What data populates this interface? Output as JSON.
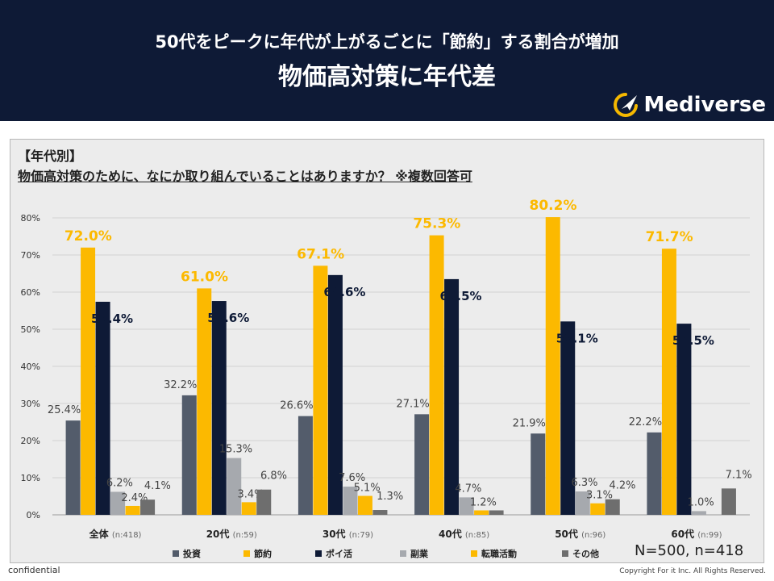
{
  "header": {
    "title_line1": "50代をピークに年代が上がるごとに「節約」する割合が増加",
    "title_line2": "物価高対策に年代差",
    "brand": "Mediverse"
  },
  "question": {
    "tag": "【年代別】",
    "text": "物価高対策のために、なにか取り組んでいることはありますか？ ※複数回答可"
  },
  "footer": {
    "sample_note": "N=500, n=418",
    "confidential": "confidential",
    "copyright": "Copyright For it Inc. All Rights Reserved."
  },
  "colors": {
    "header_bg": "#0e1a36",
    "brand_accent": "#f5b800"
  },
  "chart_data": {
    "type": "bar",
    "ylim": [
      0,
      80
    ],
    "yticks": [
      "0%",
      "10%",
      "20%",
      "30%",
      "40%",
      "50%",
      "60%",
      "70%",
      "80%"
    ],
    "categories": [
      {
        "name": "全体",
        "n": "(n:418)"
      },
      {
        "name": "20代",
        "n": "(n:59)"
      },
      {
        "name": "30代",
        "n": "(n:79)"
      },
      {
        "name": "40代",
        "n": "(n:85)"
      },
      {
        "name": "50代",
        "n": "(n:96)"
      },
      {
        "name": "60代",
        "n": "(n:99)"
      }
    ],
    "series": [
      {
        "name": "投資",
        "color": "#535c6b",
        "values": [
          25.4,
          32.2,
          26.6,
          27.1,
          21.9,
          22.2
        ],
        "labels": [
          "25.4%",
          "32.2%",
          "26.6%",
          "27.1%",
          "21.9%",
          "22.2%"
        ]
      },
      {
        "name": "節約",
        "color": "#fcb900",
        "values": [
          72.0,
          61.0,
          67.1,
          75.3,
          80.2,
          71.7
        ],
        "labels": [
          "72.0%",
          "61.0%",
          "67.1%",
          "75.3%",
          "80.2%",
          "71.7%"
        ]
      },
      {
        "name": "ポイ活",
        "color": "#0e1a36",
        "values": [
          57.4,
          57.6,
          64.6,
          63.5,
          52.1,
          51.5
        ],
        "labels": [
          "57.4%",
          "57.6%",
          "64.6%",
          "63.5%",
          "52.1%",
          "51.5%"
        ]
      },
      {
        "name": "副業",
        "color": "#a6a9ae",
        "values": [
          6.2,
          15.3,
          7.6,
          4.7,
          6.3,
          1.0
        ],
        "labels": [
          "6.2%",
          "15.3%",
          "7.6%",
          "4.7%",
          "6.3%",
          "1.0%"
        ]
      },
      {
        "name": "転職活動",
        "color": "#fcb900",
        "values": [
          2.4,
          3.4,
          5.1,
          1.2,
          3.1,
          0.0
        ],
        "labels": [
          "2.4%",
          "3.4%",
          "5.1%",
          "1.2%",
          "3.1%",
          ""
        ]
      },
      {
        "name": "その他",
        "color": "#6e6e6e",
        "values": [
          4.1,
          6.8,
          1.3,
          1.2,
          4.2,
          7.1
        ],
        "labels": [
          "4.1%",
          "6.8%",
          "1.3%",
          "",
          "4.2%",
          "7.1%"
        ]
      }
    ]
  }
}
